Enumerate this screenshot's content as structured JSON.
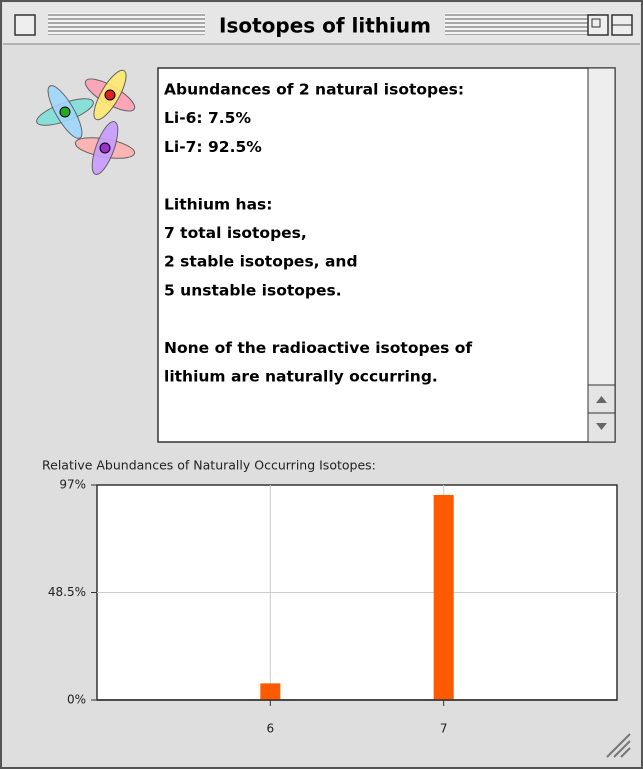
{
  "window": {
    "title": "Isotopes of lithium"
  },
  "info": {
    "paragraphs": [
      [
        "Abundances of 2 natural isotopes:",
        "Li-6:  7.5%",
        "Li-7:  92.5%"
      ],
      [
        "Lithium has:",
        "7 total isotopes,",
        "2 stable isotopes, and",
        "5 unstable isotopes."
      ],
      [
        "None of the radioactive isotopes of",
        "lithium are naturally occurring."
      ]
    ]
  },
  "chart_data": {
    "type": "bar",
    "title": "Relative Abundances of Naturally Occurring Isotopes:",
    "x": [
      6,
      7
    ],
    "values": [
      7.5,
      92.5
    ],
    "color": "#ff5a00",
    "xlim": [
      5,
      8
    ],
    "xticks": [
      6,
      7
    ],
    "ylim": [
      0,
      97
    ],
    "yticks": [
      {
        "value": 0,
        "label": "0%"
      },
      {
        "value": 48.5,
        "label": "48.5%"
      },
      {
        "value": 97,
        "label": "97%"
      }
    ],
    "grid": true
  }
}
